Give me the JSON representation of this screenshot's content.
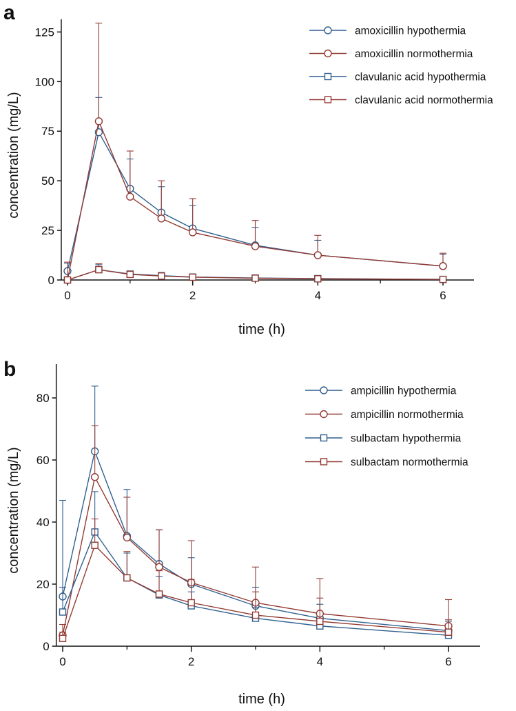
{
  "colors": {
    "hypothermia": "#2f5f8f",
    "normothermia": "#933a33",
    "axis": "#111111"
  },
  "chart_data": [
    {
      "panel": "a",
      "type": "line",
      "xlabel": "time (h)",
      "ylabel": "concentration (mg/L)",
      "xlim": [
        -0.1,
        6.5
      ],
      "ylim": [
        0,
        130
      ],
      "xticks": [
        0,
        2,
        4,
        6
      ],
      "xticks_minor": [
        1,
        3,
        5
      ],
      "yticks": [
        0,
        25,
        50,
        75,
        100,
        125
      ],
      "grid": false,
      "legend_position": "top-right",
      "series": [
        {
          "name": "amoxicillin hypothermia",
          "marker": "circle",
          "color_key": "hypothermia",
          "x": [
            0,
            0.5,
            1,
            1.5,
            2,
            3,
            4,
            6
          ],
          "y": [
            4.5,
            74.5,
            46,
            34,
            26,
            17.5,
            12.5,
            7
          ],
          "err": [
            4,
            17.5,
            15,
            13,
            11.5,
            9,
            7.5,
            6
          ]
        },
        {
          "name": "amoxicillin normothermia",
          "marker": "circle",
          "color_key": "normothermia",
          "x": [
            0,
            0.5,
            1,
            1.5,
            2,
            3,
            4,
            6
          ],
          "y": [
            0,
            80,
            42,
            31,
            24,
            17,
            12.5,
            7
          ],
          "err": [
            9,
            49.5,
            23,
            19,
            17,
            13,
            10,
            6.5
          ]
        },
        {
          "name": "clavulanic acid hypothermia",
          "marker": "square",
          "color_key": "hypothermia",
          "x": [
            0,
            0.5,
            1,
            1.5,
            2,
            3,
            4,
            6
          ],
          "y": [
            0,
            5.2,
            3,
            2.2,
            1.5,
            1,
            0.7,
            0.3
          ],
          "err": [
            0,
            2.5,
            1.5,
            1.2,
            0.9,
            0.6,
            0.4,
            0.2
          ]
        },
        {
          "name": "clavulanic acid normothermia",
          "marker": "square",
          "color_key": "normothermia",
          "x": [
            0,
            0.5,
            1,
            1.5,
            2,
            3,
            4,
            6
          ],
          "y": [
            0,
            5.2,
            2.8,
            2,
            1.4,
            0.9,
            0.6,
            0.3
          ],
          "err": [
            0,
            3,
            1.5,
            1.2,
            0.9,
            0.6,
            0.4,
            0.2
          ]
        }
      ]
    },
    {
      "panel": "b",
      "type": "line",
      "xlabel": "time (h)",
      "ylabel": "concentration (mg/L)",
      "xlim": [
        -0.1,
        6.5
      ],
      "ylim": [
        0,
        90
      ],
      "xticks": [
        0,
        2,
        4,
        6
      ],
      "xticks_minor": [
        1,
        3,
        5
      ],
      "yticks": [
        0,
        20,
        40,
        60,
        80
      ],
      "grid": false,
      "legend_position": "top-right",
      "series": [
        {
          "name": "ampicillin hypothermia",
          "marker": "circle",
          "color_key": "hypothermia",
          "x": [
            0,
            0.5,
            1,
            1.5,
            2,
            3,
            4,
            6
          ],
          "y": [
            16,
            62.8,
            35.5,
            26.5,
            20,
            13,
            9,
            5
          ],
          "err": [
            31,
            21,
            15,
            11,
            8.5,
            6,
            4.5,
            3
          ]
        },
        {
          "name": "ampicillin normothermia",
          "marker": "circle",
          "color_key": "normothermia",
          "x": [
            0,
            0.5,
            1,
            1.5,
            2,
            3,
            4,
            6
          ],
          "y": [
            3.5,
            54.5,
            35,
            25.5,
            20.5,
            14,
            10.5,
            6.5
          ],
          "err": [
            3.5,
            16.5,
            13,
            12,
            13.5,
            11.5,
            11.3,
            8.5
          ]
        },
        {
          "name": "sulbactam hypothermia",
          "marker": "square",
          "color_key": "hypothermia",
          "x": [
            0,
            0.5,
            1,
            1.5,
            2,
            3,
            4,
            6
          ],
          "y": [
            11,
            36.8,
            22,
            16.5,
            13,
            9,
            6.5,
            3.5
          ],
          "err": [
            8,
            13,
            8,
            6,
            4.5,
            3.5,
            2.5,
            1.5
          ]
        },
        {
          "name": "sulbactam normothermia",
          "marker": "square",
          "color_key": "normothermia",
          "x": [
            0,
            0.5,
            1,
            1.5,
            2,
            3,
            4,
            6
          ],
          "y": [
            2.5,
            32.5,
            22,
            16.8,
            14,
            10,
            8,
            4.5
          ],
          "err": [
            2,
            8.5,
            8.5,
            7.5,
            7.5,
            7.5,
            7.5,
            4
          ]
        }
      ]
    }
  ]
}
